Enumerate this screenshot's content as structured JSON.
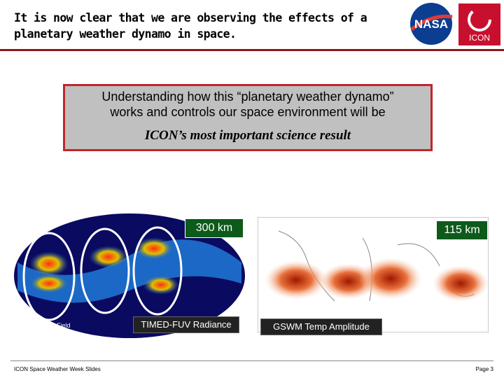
{
  "header": {
    "title_lines": [
      "It is now clear that we are observing the effects of a",
      "planetary weather dynamo in space."
    ],
    "logos": [
      "NASA",
      "ICON"
    ]
  },
  "callout": {
    "lines": [
      "Understanding how this “planetary weather dynamo”",
      "works and controls our space environment will be"
    ],
    "emphasis": "ICON’s most important science result"
  },
  "figures": [
    {
      "altitude": "300  km",
      "caption": "TIMED-FUV Radiance",
      "inset": "Magnetic Field"
    },
    {
      "altitude": "115 km",
      "caption": "GSWM Temp Amplitude"
    }
  ],
  "footer": {
    "left": "ICON Space Weather Week Slides",
    "right": "Page  3"
  }
}
